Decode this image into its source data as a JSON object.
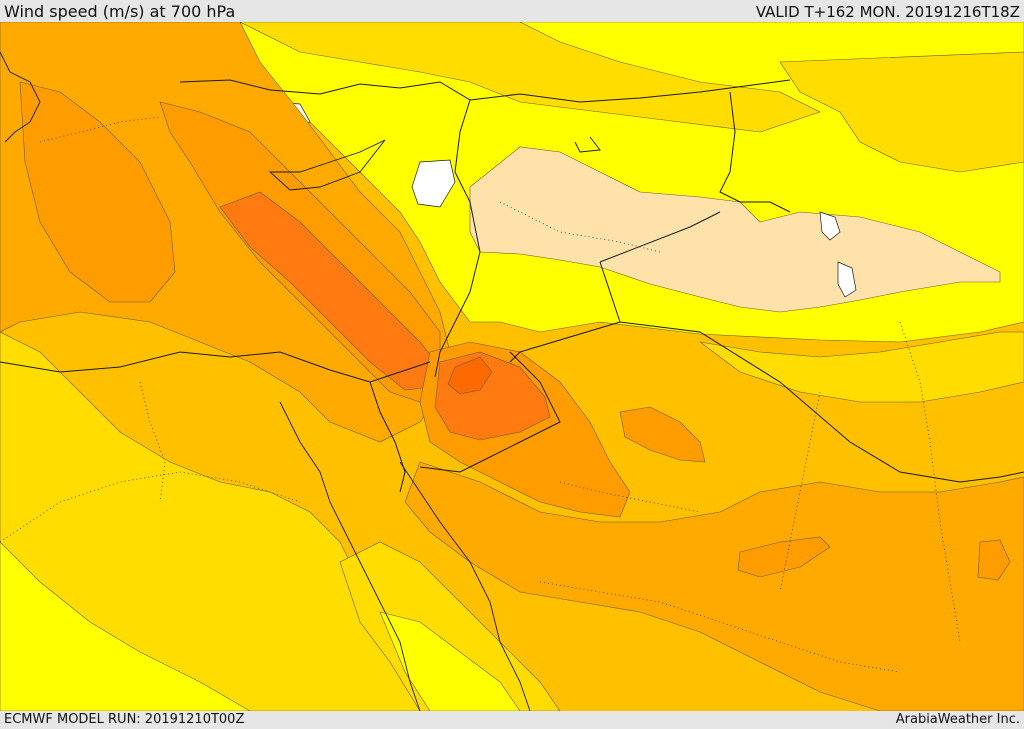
{
  "header": {
    "title": "Wind speed (m/s) at 700 hPa",
    "valid": "VALID T+162 MON. 20191216T18Z"
  },
  "footer": {
    "model_run": "ECMWF MODEL RUN: 20191210T00Z",
    "credit": "ArabiaWeather Inc."
  },
  "map": {
    "field": "wind-speed",
    "level": "700 hPa",
    "colors": {
      "lightest": "#ffe2aa",
      "bright_yellow": "#ffff00",
      "yellow": "#ffdd00",
      "gold": "#ffc000",
      "light_orange": "#ffaa00",
      "orange": "#ff8800",
      "dark_orange": "#ff6a00",
      "border": "#1a1a1a",
      "contour": "#6a5a30"
    }
  }
}
